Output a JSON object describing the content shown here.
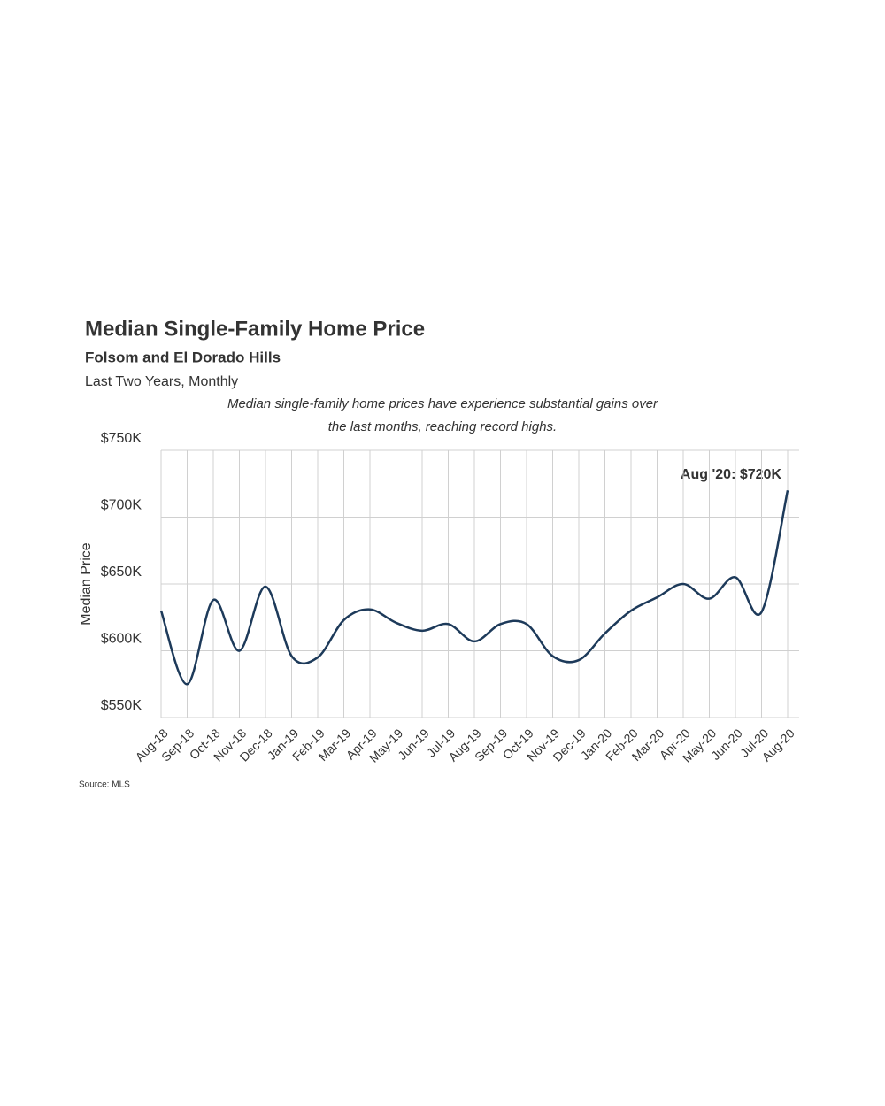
{
  "chart_data": {
    "type": "line",
    "title": "Median Single-Family Home Price",
    "subtitle": "Folsom and El Dorado Hills",
    "period": "Last Two Years, Monthly",
    "description": "Median single-family home prices have experience substantial gains over the last months, reaching record highs.",
    "y_label": "Median Price",
    "annotation": "Aug '20: $720K",
    "source": "Source: MLS",
    "categories": [
      "Aug-18",
      "Sep-18",
      "Oct-18",
      "Nov-18",
      "Dec-18",
      "Jan-19",
      "Feb-19",
      "Mar-19",
      "Apr-19",
      "May-19",
      "Jun-19",
      "Jul-19",
      "Aug-19",
      "Sep-19",
      "Oct-19",
      "Nov-19",
      "Dec-19",
      "Jan-20",
      "Feb-20",
      "Mar-20",
      "Apr-20",
      "May-20",
      "Jun-20",
      "Jul-20",
      "Aug-20"
    ],
    "values": [
      630000,
      575000,
      638000,
      600000,
      648000,
      596000,
      595000,
      623000,
      631000,
      621000,
      615000,
      620000,
      607000,
      620000,
      620000,
      596000,
      593000,
      613000,
      630000,
      640000,
      650000,
      639000,
      655000,
      629000,
      720000
    ],
    "color": "#1d3a5a",
    "ylim": [
      550000,
      750000
    ],
    "yticks": [
      {
        "value": 550000,
        "label": "$550K"
      },
      {
        "value": 600000,
        "label": "$600K"
      },
      {
        "value": 650000,
        "label": "$650K"
      },
      {
        "value": 700000,
        "label": "$700K"
      },
      {
        "value": 750000,
        "label": "$750K"
      }
    ],
    "grid": true
  }
}
